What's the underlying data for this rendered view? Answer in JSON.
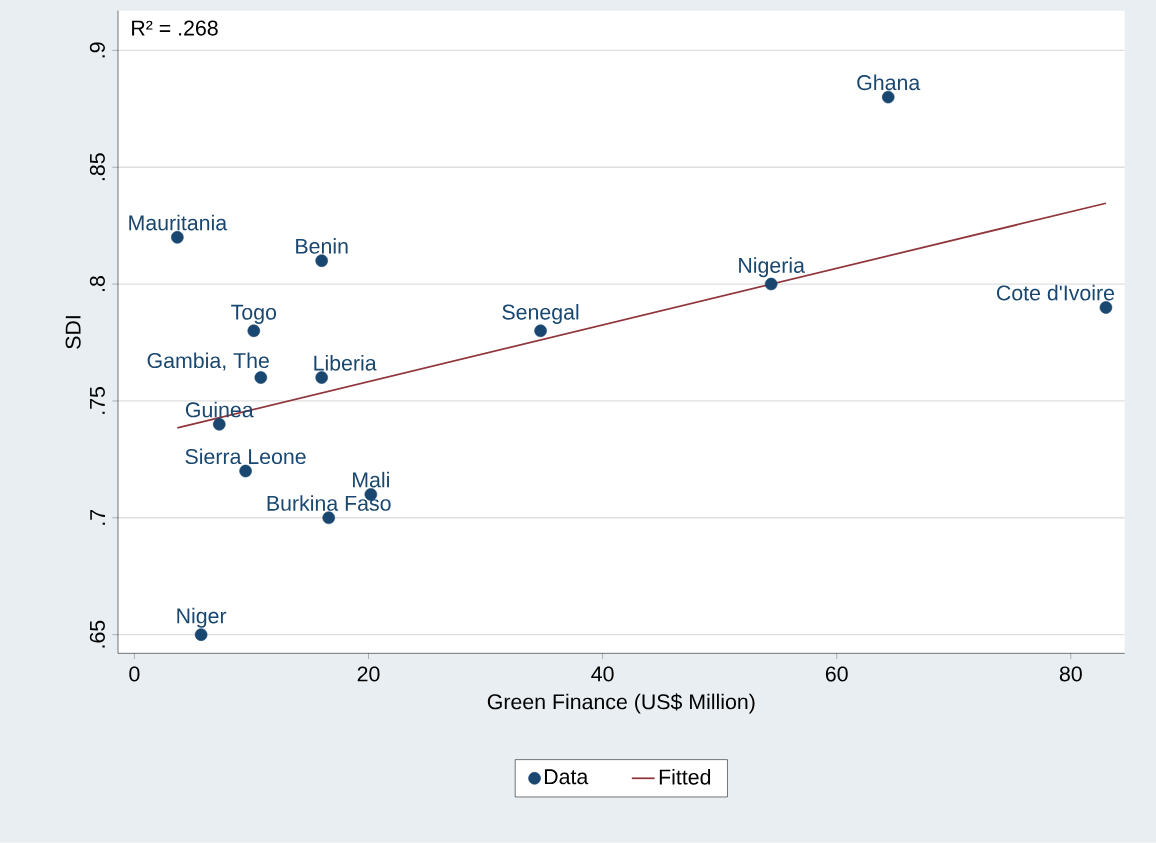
{
  "chart_data": {
    "type": "scatter",
    "xlabel": "Green Finance (US$ Million)",
    "ylabel": "SDI",
    "xlim": [
      -1.4,
      84.6
    ],
    "ylim": [
      0.642,
      0.917
    ],
    "xticks": [
      0,
      20,
      40,
      60,
      80
    ],
    "yticks": [
      {
        "value": 0.65,
        "label": ".65"
      },
      {
        "value": 0.7,
        "label": ".7"
      },
      {
        "value": 0.75,
        "label": ".75"
      },
      {
        "value": 0.8,
        "label": ".8"
      },
      {
        "value": 0.85,
        "label": ".85"
      },
      {
        "value": 0.9,
        "label": ".9"
      }
    ],
    "grid": "y",
    "legend": "bottom",
    "series": [
      {
        "name": "Data",
        "marker": "circle",
        "color": "#1a476f",
        "x": [
          3.67,
          16.0,
          64.4,
          54.4,
          83.0,
          10.2,
          34.7,
          10.8,
          16.0,
          7.25,
          9.5,
          20.2,
          16.6,
          5.7
        ],
        "values": [
          0.82,
          0.81,
          0.88,
          0.8,
          0.79,
          0.78,
          0.78,
          0.76,
          0.76,
          0.74,
          0.72,
          0.71,
          0.7,
          0.65
        ]
      },
      {
        "name": "Fitted",
        "type": "line",
        "marker": "none",
        "color": "#90353b",
        "x": [
          3.67,
          83.0
        ],
        "values": [
          0.7385,
          0.8346
        ]
      }
    ],
    "annotations": [
      "R² = .268",
      {
        "text": "Mauritania",
        "x": 3.67,
        "y": 0.82
      },
      {
        "text": "Benin",
        "x": 16.0,
        "y": 0.81
      },
      {
        "text": "Ghana",
        "x": 64.4,
        "y": 0.88
      },
      {
        "text": "Nigeria",
        "x": 54.4,
        "y": 0.8
      },
      {
        "text": "Cote d'Ivoire",
        "x": 83.0,
        "y": 0.79
      },
      {
        "text": "Togo",
        "x": 10.2,
        "y": 0.78
      },
      {
        "text": "Senegal",
        "x": 34.7,
        "y": 0.78
      },
      {
        "text": "Gambia, The",
        "x": 10.8,
        "y": 0.76
      },
      {
        "text": "Liberia",
        "x": 16.0,
        "y": 0.76
      },
      {
        "text": "Guinea",
        "x": 7.25,
        "y": 0.74
      },
      {
        "text": "Sierra Leone",
        "x": 9.5,
        "y": 0.72
      },
      {
        "text": "Mali",
        "x": 20.2,
        "y": 0.71
      },
      {
        "text": "Burkina Faso",
        "x": 16.6,
        "y": 0.7
      },
      {
        "text": "Niger",
        "x": 5.7,
        "y": 0.65
      }
    ]
  }
}
